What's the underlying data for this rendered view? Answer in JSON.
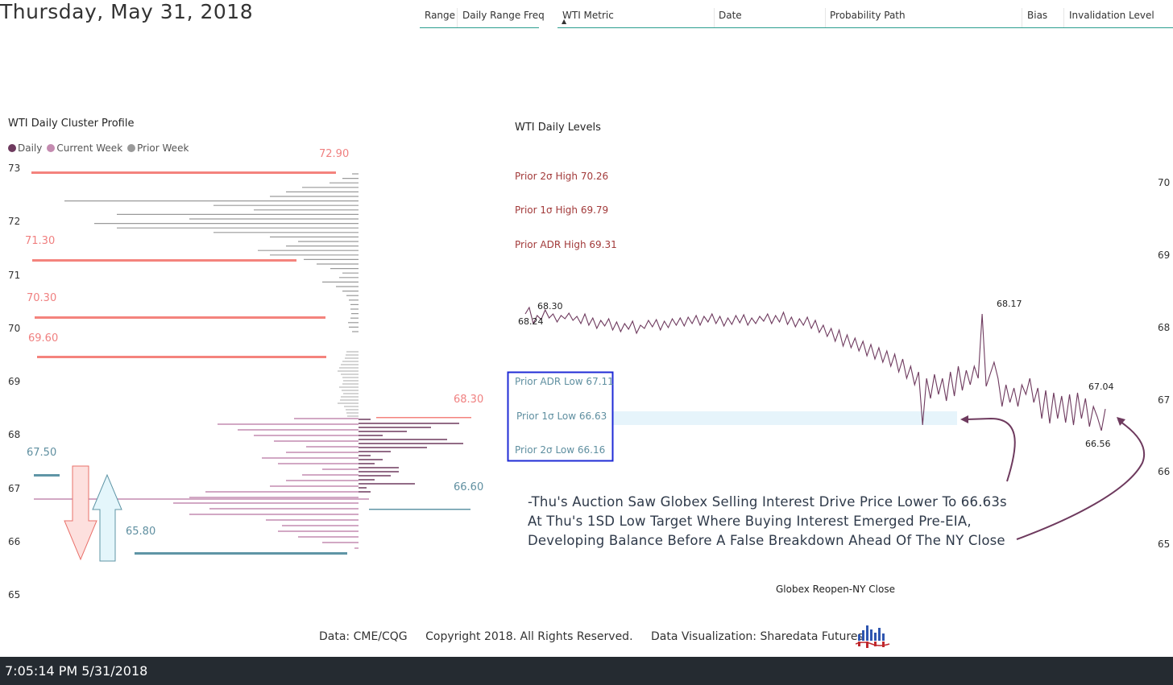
{
  "header": {
    "date_title": "Thursday, May 31, 2018",
    "tabs_left": [
      "Range",
      "Daily Range Freq"
    ],
    "tabs_right": [
      "WTI Metric",
      "Date",
      "Probability Path",
      "Bias",
      "Invalidation Level"
    ],
    "sort_indicator": "▲"
  },
  "cluster_profile": {
    "title": "WTI Daily Cluster Profile",
    "legend": [
      {
        "label": "Daily",
        "color": "#6e3a5e"
      },
      {
        "label": "Current Week",
        "color": "#c48bb0"
      },
      {
        "label": "Prior Week",
        "color": "#9a9a9a"
      }
    ],
    "y_ticks": [
      "73",
      "72",
      "71",
      "70",
      "69",
      "68",
      "67",
      "66",
      "65"
    ],
    "red_levels": [
      "72.90",
      "71.30",
      "70.30",
      "69.60",
      "68.30"
    ],
    "teal_levels": [
      "67.50",
      "66.60",
      "65.80"
    ],
    "colors": {
      "red": "#f4837d",
      "teal": "#5f95a6",
      "daily": "#6e3a5e",
      "current_week": "#c48bb0",
      "prior_week": "#9a9a9a"
    }
  },
  "levels_chart": {
    "title": "WTI Daily Levels",
    "y_ticks": [
      "70",
      "69",
      "68",
      "67",
      "66",
      "65"
    ],
    "prior_highs": [
      "Prior 2σ High 70.26",
      "Prior 1σ High 69.79",
      "Prior ADR High 69.31"
    ],
    "prior_lows": [
      "Prior ADR Low 67.11",
      "Prior 1σ Low 66.63",
      "Prior 2σ Low 66.16"
    ],
    "price_labels": [
      "68.30",
      "68.24",
      "68.17",
      "67.04",
      "66.56"
    ],
    "x_label": "Globex Reopen-NY Close",
    "line_color": "#6e3a5e",
    "commentary": [
      "-Thu's Auction Saw Globex Selling Interest Drive Price Lower To 66.63s",
      "At Thu's 1SD Low Target Where Buying Interest Emerged Pre-EIA,",
      "Developing Balance Before A False Breakdown Ahead Of The NY Close"
    ]
  },
  "footer": {
    "source": "Data: CME/CQG",
    "copyright": "Copyright 2018. All Rights Reserved.",
    "credit": "Data Visualization: Sharedata Futures"
  },
  "status": {
    "clock": "7:05:14 PM 5/31/2018"
  }
}
